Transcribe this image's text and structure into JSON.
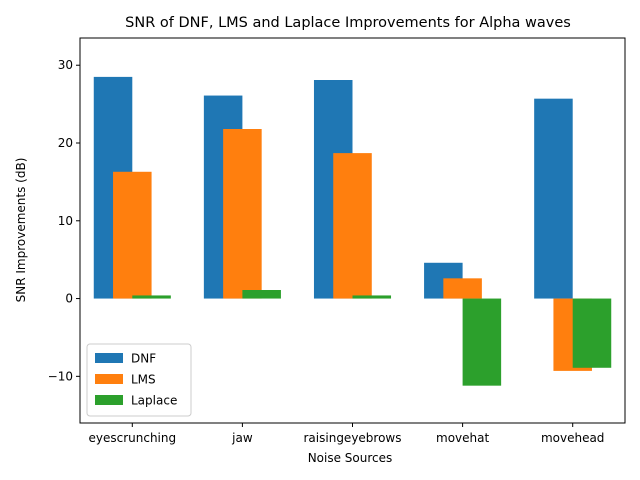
{
  "chart_data": {
    "type": "bar",
    "title": "SNR of DNF, LMS and Laplace Improvements for Alpha waves",
    "xlabel": "Noise Sources",
    "ylabel": "SNR Improvements (dB)",
    "categories": [
      "eyescrunching",
      "jaw",
      "raisingeyebrows",
      "movehat",
      "movehead"
    ],
    "series": [
      {
        "name": "DNF",
        "color": "#1f77b4",
        "values": [
          28.5,
          26.1,
          28.1,
          4.6,
          25.7
        ]
      },
      {
        "name": "LMS",
        "color": "#ff7f0e",
        "values": [
          16.3,
          21.8,
          18.7,
          2.6,
          -9.3
        ]
      },
      {
        "name": "Laplace",
        "color": "#2ca02c",
        "values": [
          0.4,
          1.1,
          0.4,
          -11.2,
          -8.9
        ]
      }
    ],
    "ylim": [
      -16,
      33.5
    ],
    "yticks": [
      -10,
      0,
      10,
      20,
      30
    ],
    "ytick_labels": [
      "−10",
      "0",
      "10",
      "20",
      "30"
    ],
    "legend_position": "lower-left",
    "grid": false
  }
}
